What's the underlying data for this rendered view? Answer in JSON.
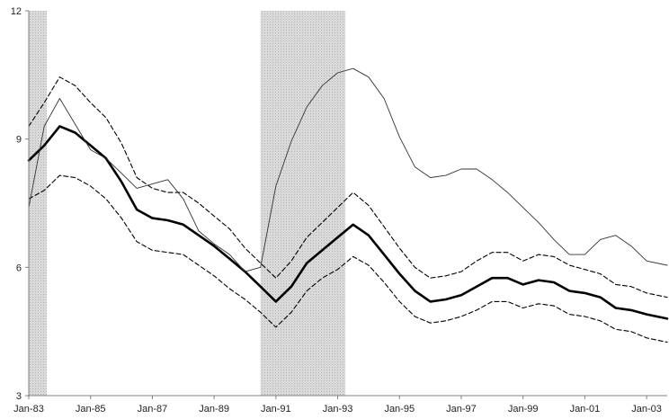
{
  "chart_data": {
    "type": "line",
    "title": "",
    "xlabel": "",
    "ylabel": "",
    "ylim": [
      3,
      12
    ],
    "yticks": [
      3,
      6,
      9,
      12
    ],
    "xlim": [
      "1983-01",
      "2003-09"
    ],
    "xticks": [
      {
        "date": "1983-01",
        "label": "Jan-83"
      },
      {
        "date": "1985-01",
        "label": "Jan-85"
      },
      {
        "date": "1987-01",
        "label": "Jan-87"
      },
      {
        "date": "1989-01",
        "label": "Jan-89"
      },
      {
        "date": "1991-01",
        "label": "Jan-91"
      },
      {
        "date": "1993-01",
        "label": "Jan-93"
      },
      {
        "date": "1995-01",
        "label": "Jan-95"
      },
      {
        "date": "1997-01",
        "label": "Jan-97"
      },
      {
        "date": "1999-01",
        "label": "Jan-99"
      },
      {
        "date": "2001-01",
        "label": "Jan-01"
      },
      {
        "date": "2003-01",
        "label": "Jan-03"
      }
    ],
    "grid": false,
    "legend": "none",
    "shaded_periods": [
      {
        "start": "1983-01",
        "end": "1983-08"
      },
      {
        "start": "1990-07",
        "end": "1993-04"
      }
    ],
    "series": [
      {
        "style": "thick-solid",
        "color": "#000000",
        "points": [
          [
            "1983-01",
            8.5
          ],
          [
            "1983-07",
            8.85
          ],
          [
            "1984-01",
            9.3
          ],
          [
            "1984-07",
            9.15
          ],
          [
            "1985-01",
            8.85
          ],
          [
            "1985-07",
            8.55
          ],
          [
            "1986-01",
            8.0
          ],
          [
            "1986-07",
            7.35
          ],
          [
            "1987-01",
            7.15
          ],
          [
            "1987-07",
            7.1
          ],
          [
            "1988-01",
            7.0
          ],
          [
            "1988-07",
            6.75
          ],
          [
            "1989-01",
            6.5
          ],
          [
            "1989-07",
            6.2
          ],
          [
            "1990-01",
            5.9
          ],
          [
            "1990-07",
            5.55
          ],
          [
            "1991-01",
            5.2
          ],
          [
            "1991-07",
            5.55
          ],
          [
            "1992-01",
            6.1
          ],
          [
            "1992-07",
            6.4
          ],
          [
            "1993-01",
            6.7
          ],
          [
            "1993-07",
            7.0
          ],
          [
            "1994-01",
            6.75
          ],
          [
            "1994-07",
            6.3
          ],
          [
            "1995-01",
            5.85
          ],
          [
            "1995-07",
            5.45
          ],
          [
            "1996-01",
            5.2
          ],
          [
            "1996-07",
            5.25
          ],
          [
            "1997-01",
            5.35
          ],
          [
            "1997-07",
            5.55
          ],
          [
            "1998-01",
            5.75
          ],
          [
            "1998-07",
            5.75
          ],
          [
            "1999-01",
            5.6
          ],
          [
            "1999-07",
            5.7
          ],
          [
            "2000-01",
            5.65
          ],
          [
            "2000-07",
            5.45
          ],
          [
            "2001-01",
            5.4
          ],
          [
            "2001-07",
            5.3
          ],
          [
            "2002-01",
            5.05
          ],
          [
            "2002-07",
            5.0
          ],
          [
            "2003-01",
            4.9
          ],
          [
            "2003-09",
            4.8
          ]
        ]
      },
      {
        "style": "dashed-upper",
        "color": "#000000",
        "points": [
          [
            "1983-01",
            9.3
          ],
          [
            "1983-07",
            9.85
          ],
          [
            "1984-01",
            10.45
          ],
          [
            "1984-07",
            10.25
          ],
          [
            "1985-01",
            9.85
          ],
          [
            "1985-07",
            9.5
          ],
          [
            "1986-01",
            8.9
          ],
          [
            "1986-07",
            8.1
          ],
          [
            "1987-01",
            7.85
          ],
          [
            "1987-07",
            7.75
          ],
          [
            "1988-01",
            7.75
          ],
          [
            "1988-07",
            7.5
          ],
          [
            "1989-01",
            7.2
          ],
          [
            "1989-07",
            6.9
          ],
          [
            "1990-01",
            6.45
          ],
          [
            "1990-07",
            6.1
          ],
          [
            "1991-01",
            5.75
          ],
          [
            "1991-07",
            6.15
          ],
          [
            "1992-01",
            6.7
          ],
          [
            "1992-07",
            7.05
          ],
          [
            "1993-01",
            7.4
          ],
          [
            "1993-07",
            7.75
          ],
          [
            "1994-01",
            7.45
          ],
          [
            "1994-07",
            6.95
          ],
          [
            "1995-01",
            6.45
          ],
          [
            "1995-07",
            6.0
          ],
          [
            "1996-01",
            5.75
          ],
          [
            "1996-07",
            5.8
          ],
          [
            "1997-01",
            5.9
          ],
          [
            "1997-07",
            6.15
          ],
          [
            "1998-01",
            6.35
          ],
          [
            "1998-07",
            6.35
          ],
          [
            "1999-01",
            6.15
          ],
          [
            "1999-07",
            6.3
          ],
          [
            "2000-01",
            6.25
          ],
          [
            "2000-07",
            6.05
          ],
          [
            "2001-01",
            5.95
          ],
          [
            "2001-07",
            5.85
          ],
          [
            "2002-01",
            5.6
          ],
          [
            "2002-07",
            5.55
          ],
          [
            "2003-01",
            5.4
          ],
          [
            "2003-09",
            5.3
          ]
        ]
      },
      {
        "style": "dashed-lower",
        "color": "#000000",
        "points": [
          [
            "1983-01",
            7.6
          ],
          [
            "1983-07",
            7.8
          ],
          [
            "1984-01",
            8.15
          ],
          [
            "1984-07",
            8.1
          ],
          [
            "1985-01",
            7.9
          ],
          [
            "1985-07",
            7.6
          ],
          [
            "1986-01",
            7.15
          ],
          [
            "1986-07",
            6.6
          ],
          [
            "1987-01",
            6.4
          ],
          [
            "1987-07",
            6.35
          ],
          [
            "1988-01",
            6.3
          ],
          [
            "1988-07",
            6.05
          ],
          [
            "1989-01",
            5.8
          ],
          [
            "1989-07",
            5.5
          ],
          [
            "1990-01",
            5.25
          ],
          [
            "1990-07",
            4.95
          ],
          [
            "1991-01",
            4.6
          ],
          [
            "1991-07",
            4.95
          ],
          [
            "1992-01",
            5.45
          ],
          [
            "1992-07",
            5.75
          ],
          [
            "1993-01",
            5.95
          ],
          [
            "1993-07",
            6.25
          ],
          [
            "1994-01",
            6.05
          ],
          [
            "1994-07",
            5.65
          ],
          [
            "1995-01",
            5.2
          ],
          [
            "1995-07",
            4.85
          ],
          [
            "1996-01",
            4.7
          ],
          [
            "1996-07",
            4.75
          ],
          [
            "1997-01",
            4.85
          ],
          [
            "1997-07",
            5.0
          ],
          [
            "1998-01",
            5.2
          ],
          [
            "1998-07",
            5.2
          ],
          [
            "1999-01",
            5.05
          ],
          [
            "1999-07",
            5.15
          ],
          [
            "2000-01",
            5.1
          ],
          [
            "2000-07",
            4.9
          ],
          [
            "2001-01",
            4.85
          ],
          [
            "2001-07",
            4.75
          ],
          [
            "2002-01",
            4.55
          ],
          [
            "2002-07",
            4.5
          ],
          [
            "2003-01",
            4.35
          ],
          [
            "2003-09",
            4.25
          ]
        ]
      },
      {
        "style": "thin-solid",
        "color": "#333333",
        "points": [
          [
            "1983-01",
            7.4
          ],
          [
            "1983-07",
            9.3
          ],
          [
            "1984-01",
            9.95
          ],
          [
            "1984-07",
            9.35
          ],
          [
            "1985-01",
            8.75
          ],
          [
            "1985-07",
            8.55
          ],
          [
            "1986-01",
            8.2
          ],
          [
            "1986-07",
            7.85
          ],
          [
            "1987-01",
            7.95
          ],
          [
            "1987-07",
            8.05
          ],
          [
            "1988-01",
            7.6
          ],
          [
            "1988-07",
            6.85
          ],
          [
            "1989-01",
            6.55
          ],
          [
            "1989-07",
            6.3
          ],
          [
            "1990-01",
            5.9
          ],
          [
            "1990-07",
            6.0
          ],
          [
            "1991-01",
            7.9
          ],
          [
            "1991-07",
            8.95
          ],
          [
            "1992-01",
            9.75
          ],
          [
            "1992-07",
            10.25
          ],
          [
            "1993-01",
            10.55
          ],
          [
            "1993-07",
            10.65
          ],
          [
            "1994-01",
            10.45
          ],
          [
            "1994-07",
            9.95
          ],
          [
            "1995-01",
            9.05
          ],
          [
            "1995-07",
            8.35
          ],
          [
            "1996-01",
            8.1
          ],
          [
            "1996-07",
            8.15
          ],
          [
            "1997-01",
            8.3
          ],
          [
            "1997-07",
            8.3
          ],
          [
            "1998-01",
            8.05
          ],
          [
            "1998-07",
            7.75
          ],
          [
            "1999-01",
            7.4
          ],
          [
            "1999-07",
            7.05
          ],
          [
            "2000-01",
            6.65
          ],
          [
            "2000-07",
            6.3
          ],
          [
            "2001-01",
            6.3
          ],
          [
            "2001-07",
            6.65
          ],
          [
            "2002-01",
            6.75
          ],
          [
            "2002-07",
            6.5
          ],
          [
            "2003-01",
            6.15
          ],
          [
            "2003-09",
            6.05
          ]
        ]
      }
    ]
  },
  "colors": {
    "shade": "#d9d9d9",
    "axis": "#808080",
    "text": "#222222"
  }
}
